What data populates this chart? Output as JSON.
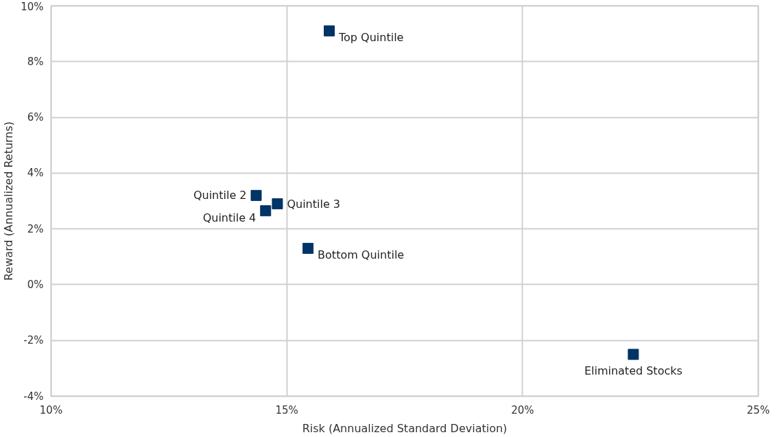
{
  "chart_data": {
    "type": "scatter",
    "xlabel": "Risk (Annualized Standard Deviation)",
    "ylabel": "Reward (Annualized Returns)",
    "xlim": [
      10,
      25
    ],
    "xticks": [
      {
        "value": 10,
        "label": "10%"
      },
      {
        "value": 15,
        "label": "15%"
      },
      {
        "value": 20,
        "label": "20%"
      },
      {
        "value": 25,
        "label": "25%"
      }
    ],
    "ylim": [
      -4,
      10
    ],
    "yticks": [
      {
        "value": -4,
        "label": "-4%"
      },
      {
        "value": -2,
        "label": "-2%"
      },
      {
        "value": 0,
        "label": "0%"
      },
      {
        "value": 2,
        "label": "2%"
      },
      {
        "value": 4,
        "label": "4%"
      },
      {
        "value": 6,
        "label": "6%"
      },
      {
        "value": 8,
        "label": "8%"
      },
      {
        "value": 10,
        "label": "10%"
      }
    ],
    "grid": true,
    "legend": false,
    "marker": "square",
    "series": [
      {
        "name": "Top Quintile",
        "color": "#003366",
        "x": [
          15.9
        ],
        "values": [
          9.1
        ]
      },
      {
        "name": "Quintile 2",
        "color": "#003366",
        "x": [
          14.35
        ],
        "values": [
          3.2
        ]
      },
      {
        "name": "Quintile 3",
        "color": "#003366",
        "x": [
          14.8
        ],
        "values": [
          2.9
        ]
      },
      {
        "name": "Quintile 4",
        "color": "#003366",
        "x": [
          14.55
        ],
        "values": [
          2.65
        ]
      },
      {
        "name": "Bottom Quintile",
        "color": "#003366",
        "x": [
          15.45
        ],
        "values": [
          1.3
        ]
      },
      {
        "name": "Eliminated Stocks",
        "color": "#003366",
        "x": [
          22.35
        ],
        "values": [
          -2.5
        ]
      }
    ]
  }
}
